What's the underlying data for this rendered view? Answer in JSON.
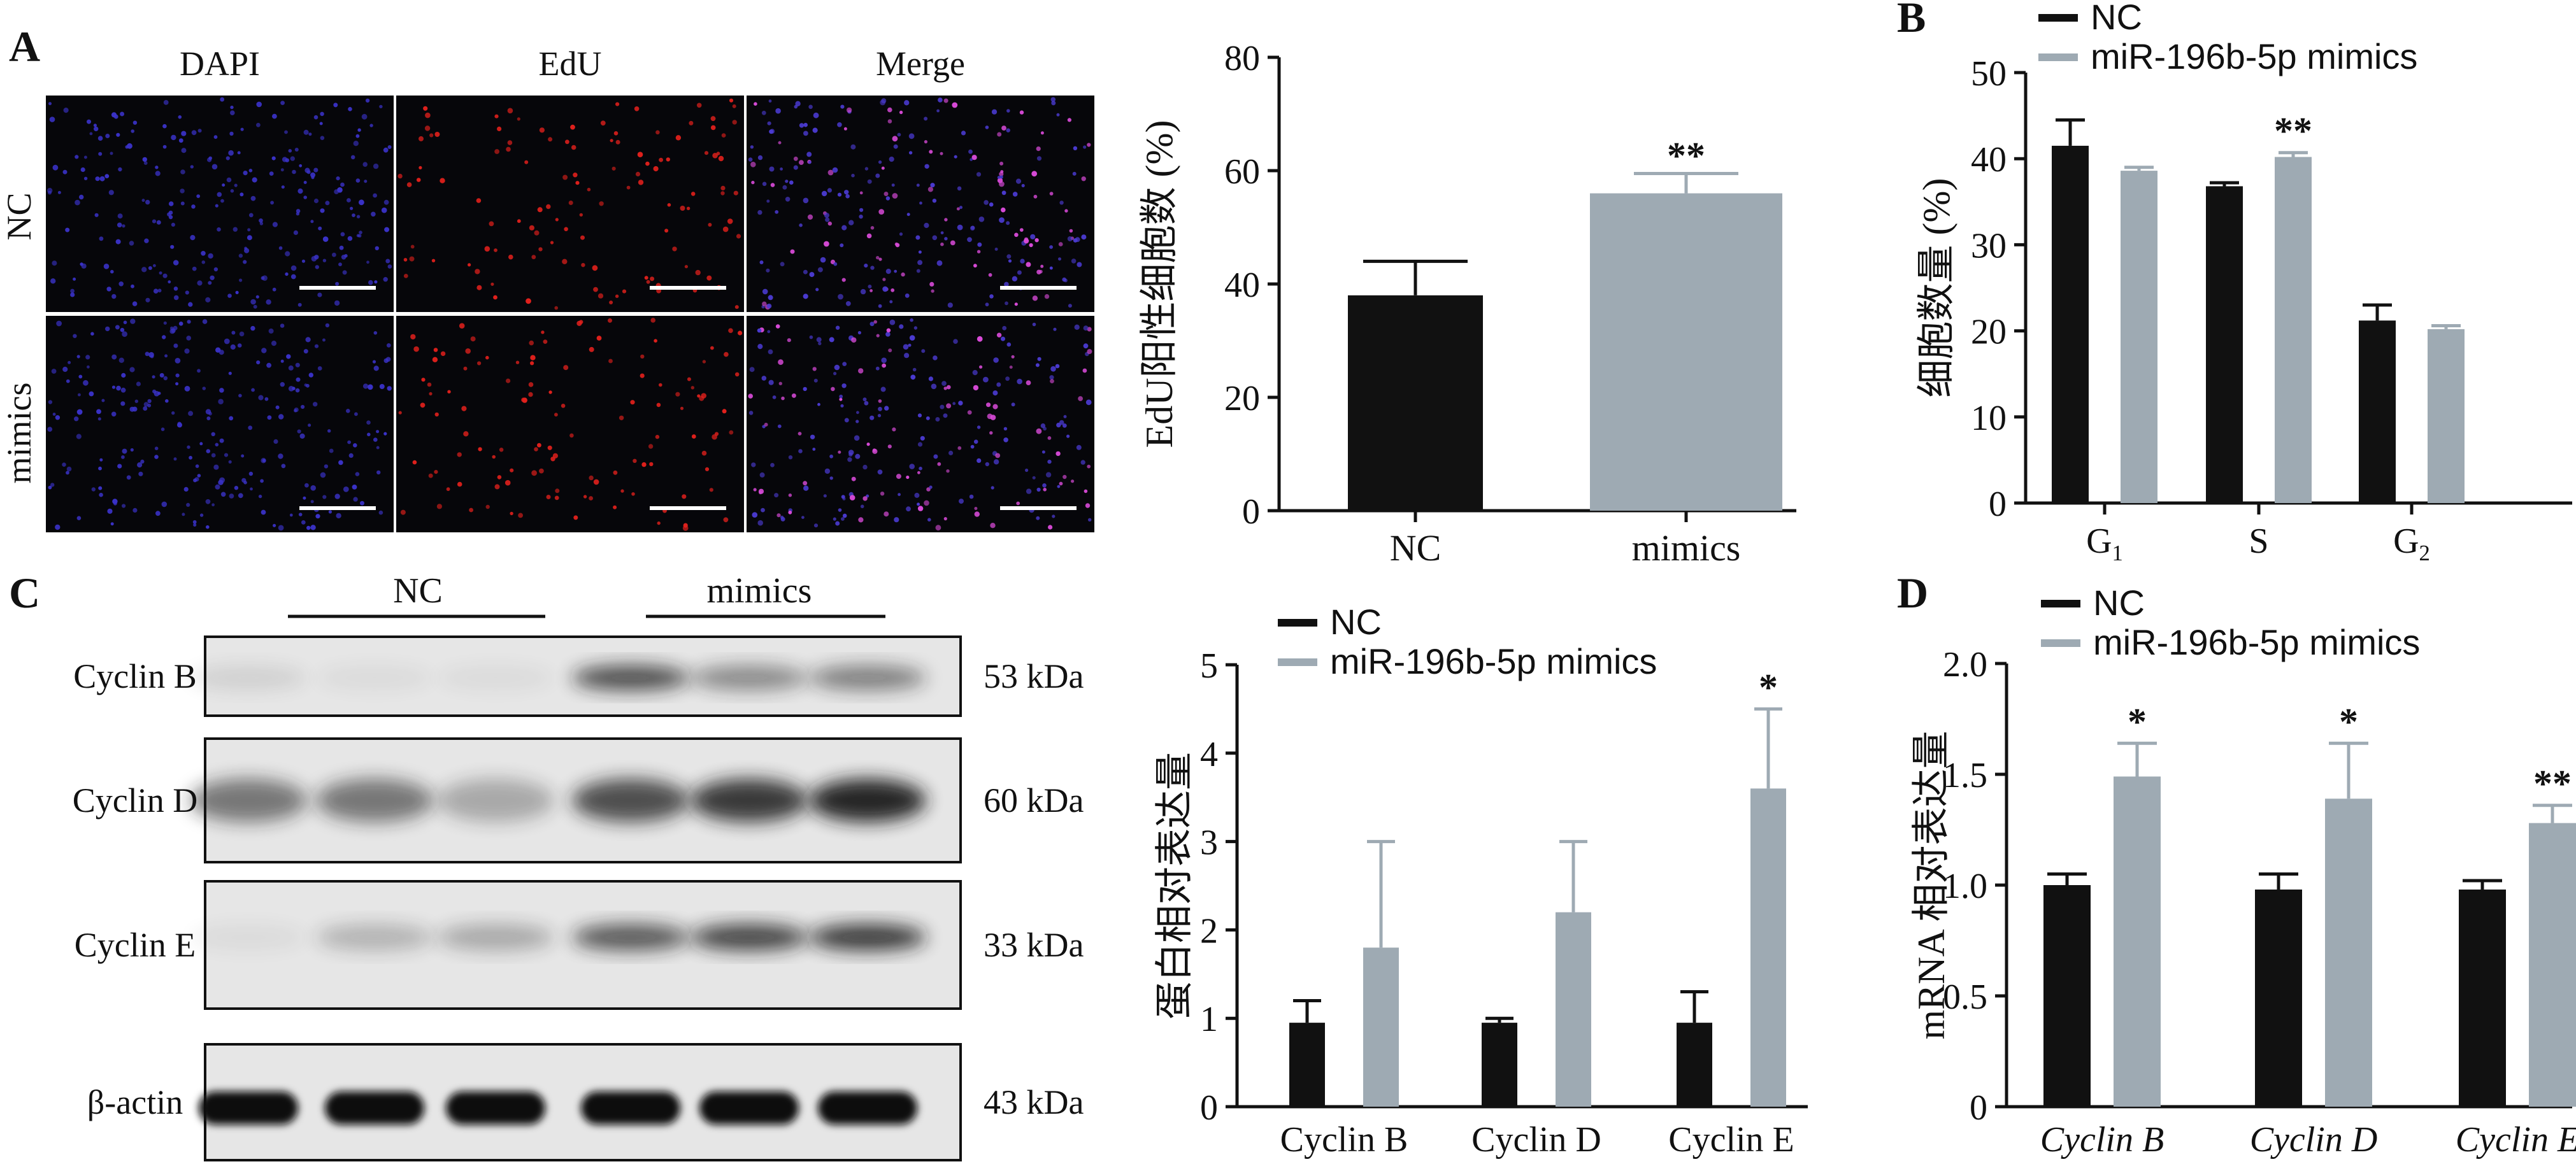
{
  "panels": {
    "A": "A",
    "B": "B",
    "C": "C",
    "D": "D"
  },
  "microscopy": {
    "columns": [
      "DAPI",
      "EdU",
      "Merge"
    ],
    "rows": [
      "NC",
      "mimics"
    ],
    "channel_colors": {
      "DAPI": "#3a32c8",
      "EdU": "#e0201c",
      "Merge": "#c040e0"
    }
  },
  "western": {
    "groups": [
      "NC",
      "mimics"
    ],
    "bands": [
      {
        "protein": "Cyclin B",
        "size": "53 kDa"
      },
      {
        "protein": "Cyclin D",
        "size": "60 kDa"
      },
      {
        "protein": "Cyclin E",
        "size": "33 kDa"
      },
      {
        "protein": "β-actin",
        "size": "43 kDa"
      }
    ]
  },
  "colors": {
    "nc": "#111111",
    "mimics": "#9eaab3"
  },
  "chart_data": [
    {
      "id": "A-bar",
      "type": "bar",
      "categories": [
        "NC",
        "mimics"
      ],
      "values": [
        38,
        56
      ],
      "errors": [
        6,
        3.5
      ],
      "annotations": [
        "",
        "**"
      ],
      "ylabel": "EdU阳性细胞数 (%)",
      "ylim": [
        0,
        80
      ],
      "yticks": [
        "0",
        "20",
        "40",
        "60",
        "80"
      ]
    },
    {
      "id": "B",
      "type": "bar",
      "categories": [
        "G1",
        "S",
        "G2"
      ],
      "series": [
        {
          "name": "NC",
          "values": [
            41.5,
            36.8,
            21.2
          ],
          "errors": [
            3,
            0.4,
            1.8
          ]
        },
        {
          "name": "miR-196b-5p mimics",
          "values": [
            38.6,
            40.2,
            20.2
          ],
          "errors": [
            0.4,
            0.5,
            0.4
          ]
        }
      ],
      "annotations": [
        "",
        "**",
        ""
      ],
      "ylabel": "细胞数量 (%)",
      "ylim": [
        0,
        50
      ],
      "yticks": [
        "0",
        "10",
        "20",
        "30",
        "40",
        "50"
      ]
    },
    {
      "id": "C-bar",
      "type": "bar",
      "categories": [
        "Cyclin B",
        "Cyclin D",
        "Cyclin E"
      ],
      "series": [
        {
          "name": "NC",
          "values": [
            0.95,
            0.95,
            0.95
          ],
          "errors": [
            0.25,
            0.05,
            0.35
          ]
        },
        {
          "name": "miR-196b-5p mimics",
          "values": [
            1.8,
            2.2,
            3.6
          ],
          "errors": [
            1.2,
            0.8,
            0.9
          ]
        }
      ],
      "annotations": [
        "",
        "",
        "*"
      ],
      "ylabel": "蛋白相对表达量",
      "ylim": [
        0,
        5
      ],
      "yticks": [
        "0",
        "1",
        "2",
        "3",
        "4",
        "5"
      ]
    },
    {
      "id": "D",
      "type": "bar",
      "categories": [
        "Cyclin B",
        "Cyclin D",
        "Cyclin E"
      ],
      "series": [
        {
          "name": "NC",
          "values": [
            1.0,
            0.98,
            0.98
          ],
          "errors": [
            0.05,
            0.07,
            0.04
          ]
        },
        {
          "name": "miR-196b-5p mimics",
          "values": [
            1.49,
            1.39,
            1.28
          ],
          "errors": [
            0.15,
            0.25,
            0.08
          ]
        }
      ],
      "annotations": [
        "*",
        "*",
        "**"
      ],
      "ylabel": "mRNA 相对表达量",
      "ylim": [
        0,
        2.0
      ],
      "yticks": [
        "0",
        "0.5",
        "1.0",
        "1.5",
        "2.0"
      ]
    }
  ]
}
